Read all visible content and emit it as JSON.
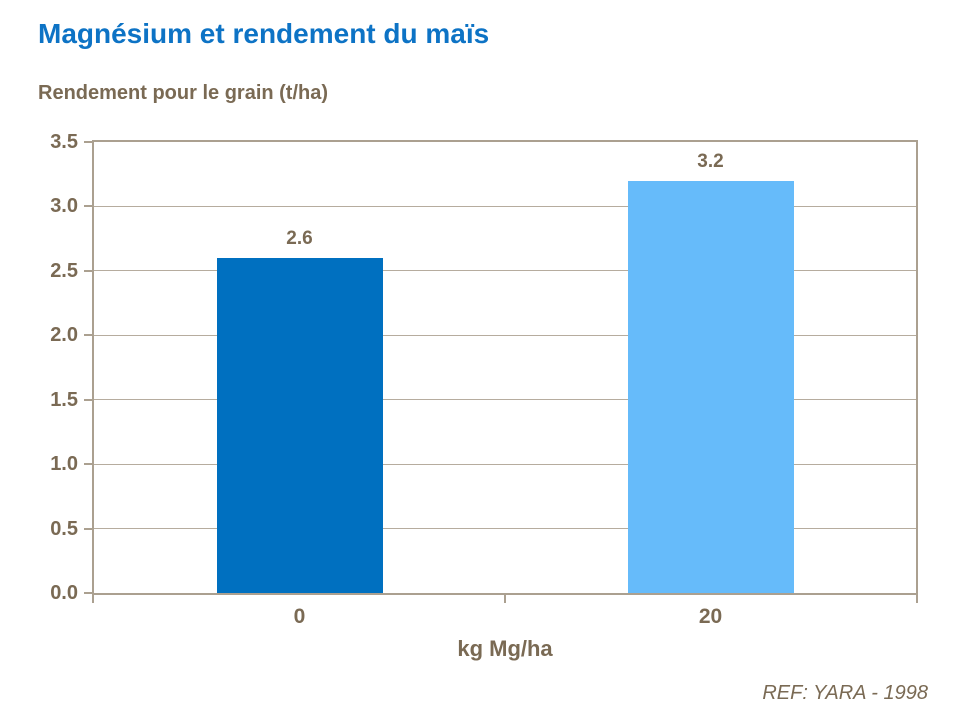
{
  "header": {
    "title": "Magnésium et rendement du maïs"
  },
  "footnote": "REF: YARA - 1998",
  "colors": {
    "title_blue": "#0d73c5",
    "text_brown": "#7a6a54",
    "axis_frame": "#aba090",
    "gridline": "#b6ac9e",
    "bar_dark_blue": "#0070c0",
    "bar_light_blue": "#66bbfa",
    "background": "#ffffff"
  },
  "chart_data": {
    "type": "bar",
    "title": "Magnésium et rendement du maïs",
    "value_axis_title": "Rendement pour le grain (t/ha)",
    "xlabel": "kg Mg/ha",
    "ylabel": "Rendement pour le grain (t/ha)",
    "categories": [
      "0",
      "20"
    ],
    "values": [
      2.6,
      3.2
    ],
    "data_labels": [
      "2.6",
      "3.2"
    ],
    "bar_colors": [
      "#0070c0",
      "#66bbfa"
    ],
    "ylim": [
      0,
      3.5
    ],
    "ytick_step": 0.5,
    "yticks": [
      "0.0",
      "0.5",
      "1.0",
      "1.5",
      "2.0",
      "2.5",
      "3.0",
      "3.5"
    ],
    "grid": true,
    "legend_position": "none",
    "source": "REF: YARA - 1998"
  }
}
